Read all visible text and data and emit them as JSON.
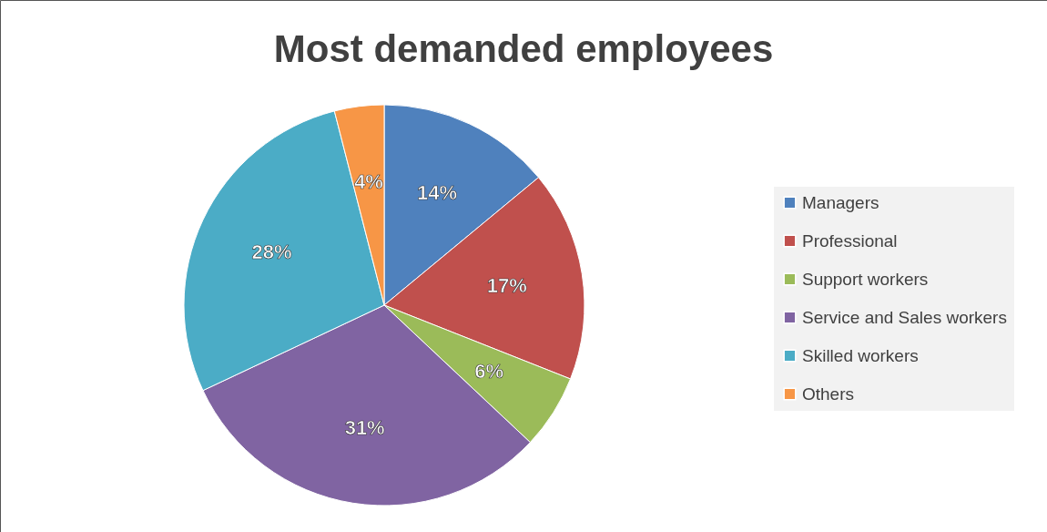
{
  "chart_data": {
    "type": "pie",
    "title": "Most demanded employees",
    "categories": [
      "Managers",
      "Professional",
      "Support workers",
      "Service and Sales workers",
      "Skilled workers",
      "Others"
    ],
    "values": [
      14,
      17,
      6,
      31,
      28,
      4
    ],
    "value_labels": [
      "14%",
      "17%",
      "6%",
      "31%",
      "28%",
      "4%"
    ],
    "colors": [
      "#4f81bd",
      "#c0504d",
      "#9bbb59",
      "#8064a2",
      "#4bacc6",
      "#f79646"
    ],
    "legend": "right"
  }
}
